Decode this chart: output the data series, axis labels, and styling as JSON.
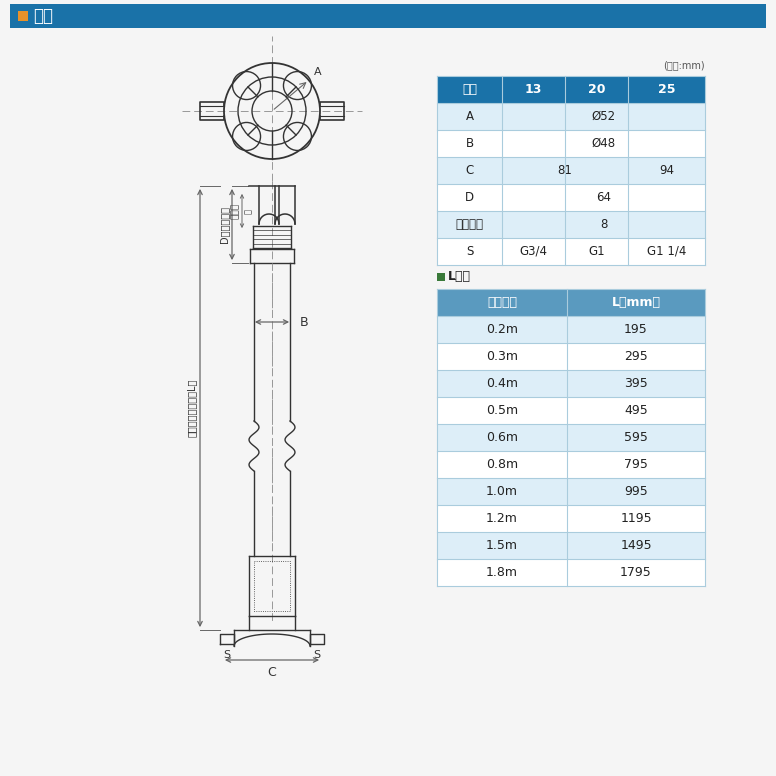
{
  "title_square_color": "#e8922a",
  "title_text": "寸法",
  "title_bg": "#1a72a8",
  "title_text_color": "#ffffff",
  "bg_color": "#f5f5f5",
  "unit_note": "(単位:mm)",
  "table1_header": [
    "口径",
    "13",
    "20",
    "25"
  ],
  "table1_header_bg": "#1a72a8",
  "table1_header_fg": "#ffffff",
  "table2_title_square": "#3a7a3a",
  "table2_title_text": "L寸法",
  "table2_header_bg": "#5a9abf",
  "table2_header_fg": "#ffffff",
  "odd_row_bg": "#ddeef8",
  "even_row_bg": "#ffffff",
  "border_color": "#aaccdd",
  "drawing_line_color": "#333333",
  "dim_line_color": "#666666",
  "center_line_color": "#999999"
}
